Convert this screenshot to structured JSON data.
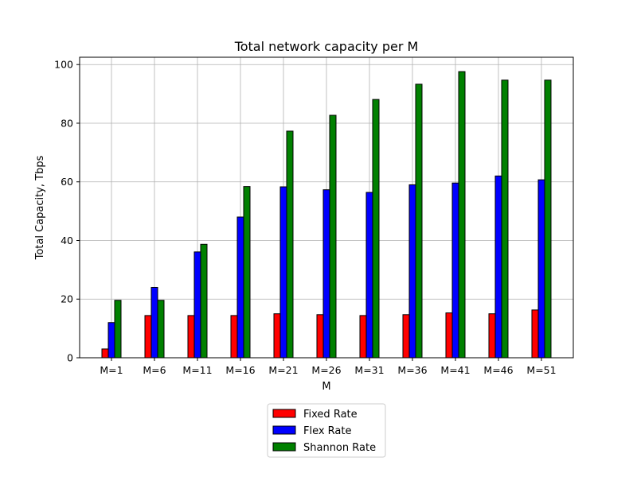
{
  "chart_data": {
    "type": "bar",
    "title": "Total network capacity per M",
    "xlabel": "M",
    "ylabel": "Total Capacity, Tbps",
    "categories": [
      "M=1",
      "M=6",
      "M=11",
      "M=16",
      "M=21",
      "M=26",
      "M=31",
      "M=36",
      "M=41",
      "M=46",
      "M=51"
    ],
    "series": [
      {
        "name": "Fixed Rate",
        "color": "#ff0000",
        "values": [
          3.0,
          14.4,
          14.4,
          14.4,
          15.0,
          14.7,
          14.4,
          14.7,
          15.3,
          15.0,
          16.3
        ]
      },
      {
        "name": "Flex Rate",
        "color": "#0000ff",
        "values": [
          12.0,
          24.0,
          36.1,
          48.0,
          58.3,
          57.3,
          56.4,
          59.0,
          59.6,
          62.0,
          60.7
        ]
      },
      {
        "name": "Shannon Rate",
        "color": "#008000",
        "values": [
          19.6,
          19.6,
          38.7,
          58.4,
          77.3,
          82.7,
          88.1,
          93.3,
          97.6,
          94.7,
          94.7
        ]
      }
    ],
    "ylim": [
      0,
      102.5
    ],
    "yticks": [
      "0",
      "20",
      "40",
      "60",
      "80",
      "100"
    ],
    "grid": true,
    "legend_position": "bottom-center"
  }
}
